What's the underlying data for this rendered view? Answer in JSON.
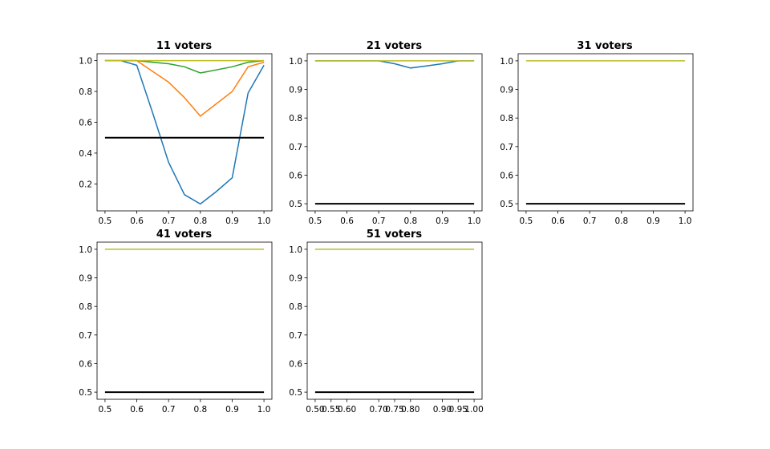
{
  "chart_data": [
    {
      "type": "line",
      "title": "11 voters",
      "xlim": [
        0.475,
        1.025
      ],
      "ylim": [
        0.025,
        1.045
      ],
      "xticks": [
        "0.5",
        "0.6",
        "0.7",
        "0.8",
        "0.9",
        "1.0"
      ],
      "yticks": [
        "0.2",
        "0.4",
        "0.6",
        "0.8",
        "1.0"
      ],
      "series": [
        {
          "color": "#1f77b4",
          "x": [
            0.5,
            0.55,
            0.6,
            0.65,
            0.7,
            0.75,
            0.8,
            0.85,
            0.9,
            0.95,
            1.0
          ],
          "y": [
            1.0,
            1.0,
            0.97,
            0.66,
            0.34,
            0.13,
            0.07,
            0.15,
            0.24,
            0.79,
            0.97
          ]
        },
        {
          "color": "#ff7f0e",
          "x": [
            0.5,
            0.55,
            0.6,
            0.65,
            0.7,
            0.75,
            0.8,
            0.85,
            0.9,
            0.95,
            1.0
          ],
          "y": [
            1.0,
            1.0,
            1.0,
            0.93,
            0.86,
            0.76,
            0.64,
            0.72,
            0.8,
            0.96,
            0.99
          ]
        },
        {
          "color": "#2ca02c",
          "x": [
            0.5,
            0.55,
            0.6,
            0.65,
            0.7,
            0.75,
            0.8,
            0.85,
            0.9,
            0.95,
            1.0
          ],
          "y": [
            1.0,
            1.0,
            1.0,
            0.99,
            0.98,
            0.96,
            0.92,
            0.94,
            0.96,
            0.99,
            1.0
          ]
        },
        {
          "color": "#bcbd22",
          "x": [
            0.5,
            1.0
          ],
          "y": [
            1.0,
            1.0
          ]
        },
        {
          "color": "#000000",
          "x": [
            0.5,
            1.0
          ],
          "y": [
            0.5,
            0.5
          ]
        }
      ]
    },
    {
      "type": "line",
      "title": "21 voters",
      "xlim": [
        0.475,
        1.025
      ],
      "ylim": [
        0.475,
        1.025
      ],
      "xticks": [
        "0.5",
        "0.6",
        "0.7",
        "0.8",
        "0.9",
        "1.0"
      ],
      "yticks": [
        "0.5",
        "0.6",
        "0.7",
        "0.8",
        "0.9",
        "1.0"
      ],
      "series": [
        {
          "color": "#1f77b4",
          "x": [
            0.5,
            0.7,
            0.75,
            0.8,
            0.85,
            0.9,
            0.95,
            1.0
          ],
          "y": [
            1.0,
            1.0,
            0.99,
            0.975,
            0.982,
            0.99,
            1.0,
            1.0
          ]
        },
        {
          "color": "#bcbd22",
          "x": [
            0.5,
            1.0
          ],
          "y": [
            1.0,
            1.0
          ]
        },
        {
          "color": "#000000",
          "x": [
            0.5,
            1.0
          ],
          "y": [
            0.5,
            0.5
          ]
        }
      ]
    },
    {
      "type": "line",
      "title": "31 voters",
      "xlim": [
        0.475,
        1.025
      ],
      "ylim": [
        0.475,
        1.025
      ],
      "xticks": [
        "0.5",
        "0.6",
        "0.7",
        "0.8",
        "0.9",
        "1.0"
      ],
      "yticks": [
        "0.5",
        "0.6",
        "0.7",
        "0.8",
        "0.9",
        "1.0"
      ],
      "series": [
        {
          "color": "#bcbd22",
          "x": [
            0.5,
            1.0
          ],
          "y": [
            1.0,
            1.0
          ]
        },
        {
          "color": "#000000",
          "x": [
            0.5,
            1.0
          ],
          "y": [
            0.5,
            0.5
          ]
        }
      ]
    },
    {
      "type": "line",
      "title": "41 voters",
      "xlim": [
        0.475,
        1.025
      ],
      "ylim": [
        0.475,
        1.025
      ],
      "xticks": [
        "0.5",
        "0.6",
        "0.7",
        "0.8",
        "0.9",
        "1.0"
      ],
      "yticks": [
        "0.5",
        "0.6",
        "0.7",
        "0.8",
        "0.9",
        "1.0"
      ],
      "series": [
        {
          "color": "#bcbd22",
          "x": [
            0.5,
            1.0
          ],
          "y": [
            1.0,
            1.0
          ]
        },
        {
          "color": "#000000",
          "x": [
            0.5,
            1.0
          ],
          "y": [
            0.5,
            0.5
          ]
        }
      ]
    },
    {
      "type": "line",
      "title": "51 voters",
      "xlim": [
        0.475,
        1.025
      ],
      "ylim": [
        0.475,
        1.025
      ],
      "xticks": [
        "0.50",
        "0.55",
        "0.60",
        "0.70",
        "0.75",
        "0.80",
        "0.90",
        "0.95",
        "1.00"
      ],
      "yticks": [
        "0.5",
        "0.6",
        "0.7",
        "0.8",
        "0.9",
        "1.0"
      ],
      "series": [
        {
          "color": "#bcbd22",
          "x": [
            0.5,
            1.0
          ],
          "y": [
            1.0,
            1.0
          ]
        },
        {
          "color": "#000000",
          "x": [
            0.5,
            1.0
          ],
          "y": [
            0.5,
            0.5
          ]
        }
      ]
    }
  ]
}
